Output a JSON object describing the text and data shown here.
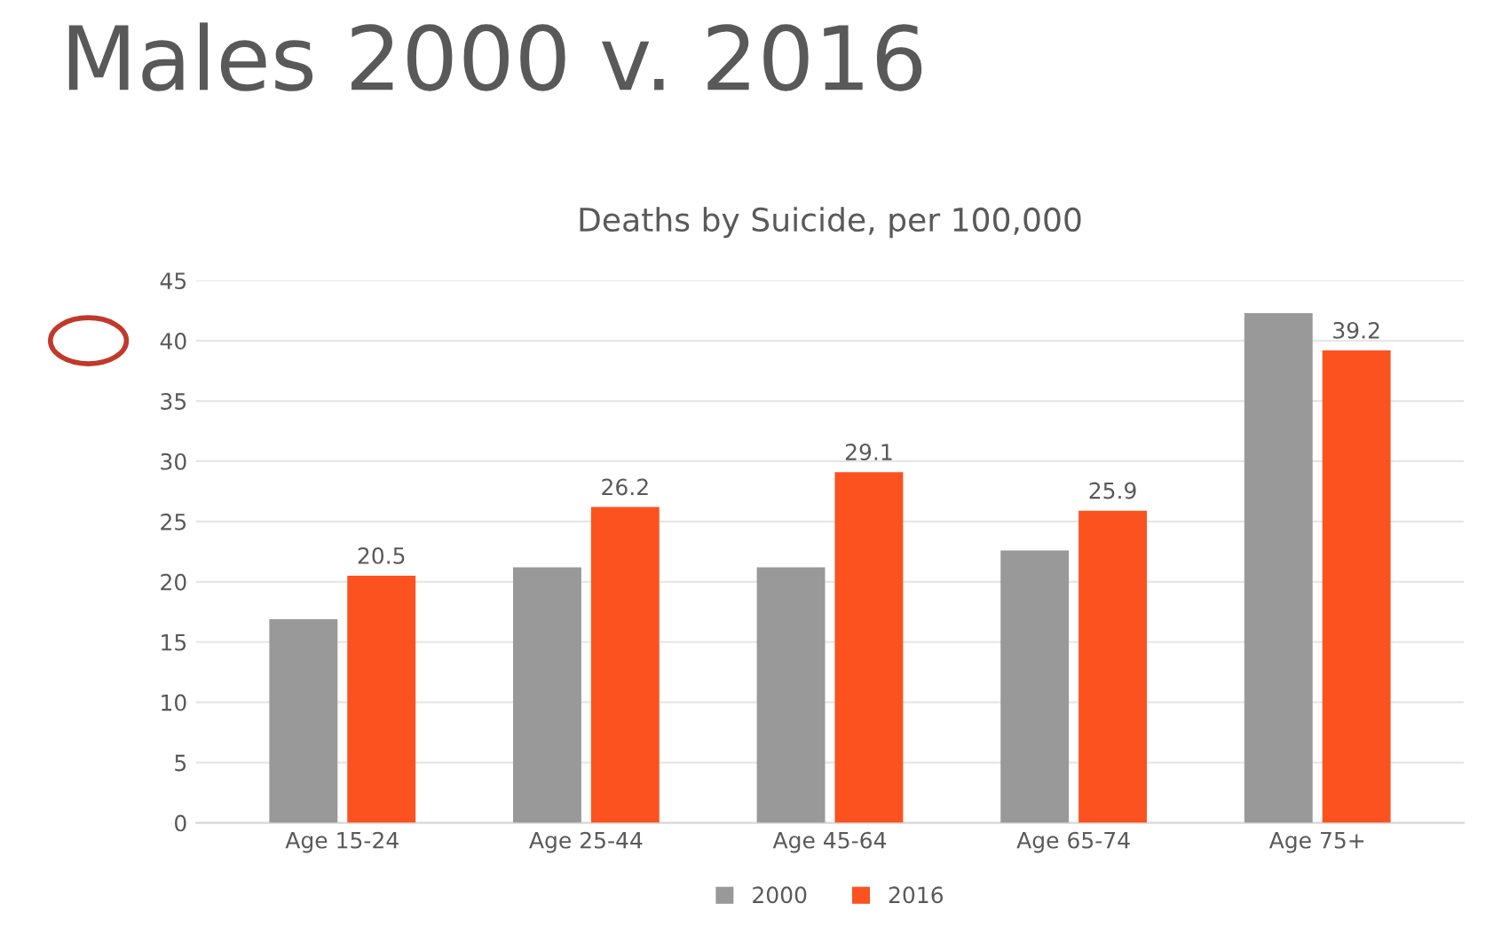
{
  "chart_data": {
    "type": "bar",
    "title": "Males 2000 v. 2016",
    "subtitle": "Deaths by Suicide, per 100,000",
    "categories": [
      "Age 15-24",
      "Age 25-44",
      "Age 45-64",
      "Age 65-74",
      "Age 75+"
    ],
    "series": [
      {
        "name": "2000",
        "color": "#999999",
        "values": [
          16.9,
          21.2,
          21.2,
          22.6,
          42.3
        ]
      },
      {
        "name": "2016",
        "color": "#fc5220",
        "values": [
          20.5,
          26.2,
          29.1,
          25.9,
          39.2
        ],
        "value_labels": [
          "20.5",
          "26.2",
          "29.1",
          "25.9",
          "39.2"
        ]
      }
    ],
    "ylim": [
      0,
      45
    ],
    "yticks": [
      0,
      5,
      10,
      15,
      20,
      25,
      30,
      35,
      40,
      45
    ],
    "grid": "y",
    "legend": "bottom"
  }
}
